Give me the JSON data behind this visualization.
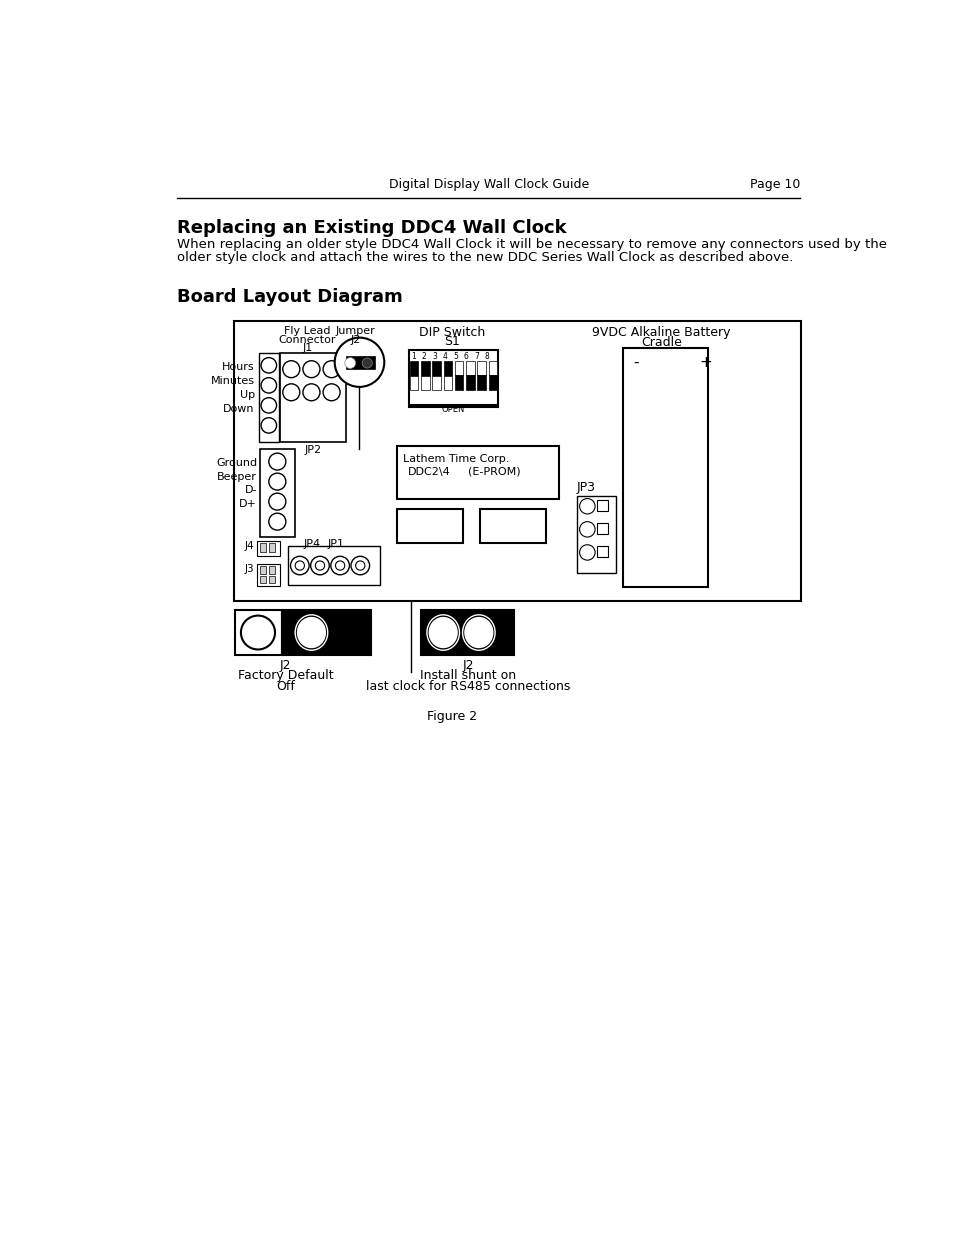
{
  "page_header_left": "Digital Display Wall Clock Guide",
  "page_header_right": "Page 10",
  "section_title": "Replacing an Existing DDC4 Wall Clock",
  "section_body_1": "When replacing an older style DDC4 Wall Clock it will be necessary to remove any connectors used by the",
  "section_body_2": "older style clock and attach the wires to the new DDC Series Wall Clock as described above.",
  "diagram_title": "Board Layout Diagram",
  "figure_caption": "Figure 2",
  "bg_color": "#ffffff",
  "text_color": "#000000"
}
